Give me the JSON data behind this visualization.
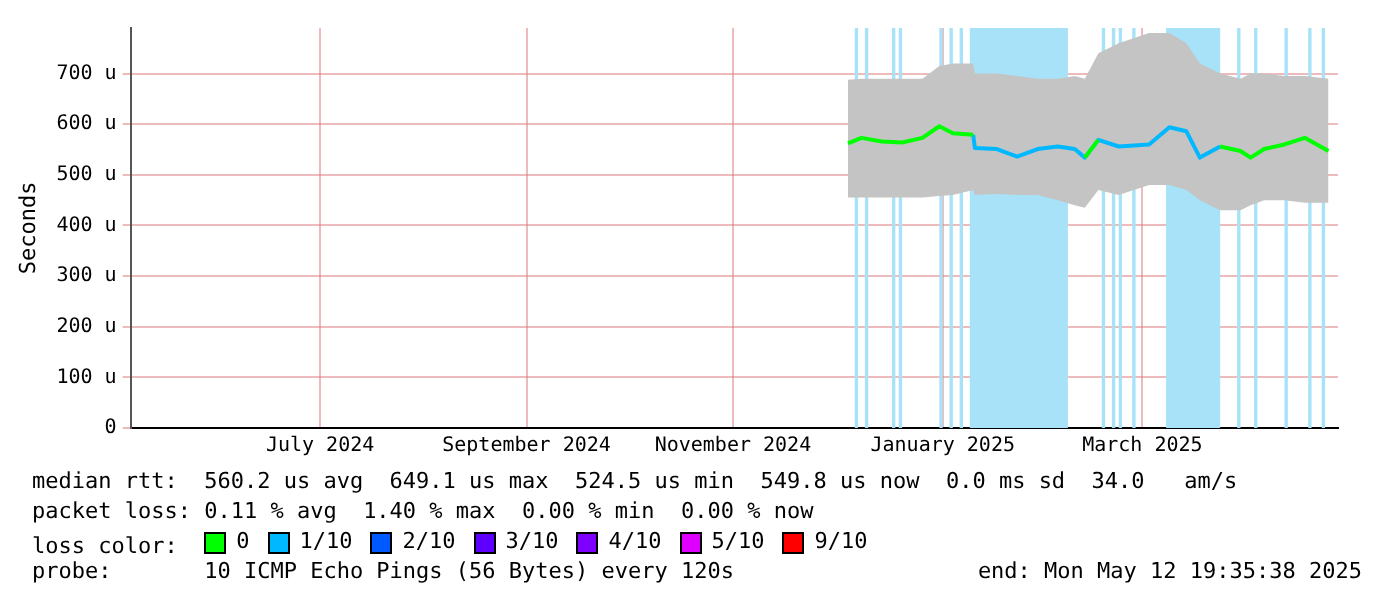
{
  "chart_data": {
    "type": "line",
    "ylabel": "Seconds",
    "legend_title": "loss color:",
    "legend": "bottom",
    "grid": true,
    "xlim": [
      "2024-05-21",
      "2025-05-12T19:35"
    ],
    "xticks": [
      {
        "value": "2024-07-16",
        "label": "July 2024"
      },
      {
        "value": "2024-09-15",
        "label": "September 2024"
      },
      {
        "value": "2024-11-15",
        "label": "November 2024"
      },
      {
        "value": "2025-01-16",
        "label": "January 2025"
      },
      {
        "value": "2025-03-16",
        "label": "March 2025"
      }
    ],
    "ylim": [
      0,
      790
    ],
    "yticks": [
      0,
      {
        "value": 100,
        "label": "100 u"
      },
      {
        "value": 200,
        "label": "200 u"
      },
      {
        "value": 300,
        "label": "300 u"
      },
      {
        "value": 400,
        "label": "400 u"
      },
      {
        "value": 500,
        "label": "500 u"
      },
      {
        "value": 600,
        "label": "600 u"
      },
      {
        "value": 700,
        "label": "700 u"
      }
    ],
    "x": [
      "2024-12-19",
      "2024-12-23",
      "2024-12-29",
      "2025-01-04",
      "2025-01-10",
      "2025-01-15",
      "2025-01-19",
      "2025-01-25",
      "2025-01-25T12:00",
      "2025-02-01",
      "2025-02-07",
      "2025-02-13",
      "2025-02-19",
      "2025-02-24",
      "2025-02-27",
      "2025-03-03",
      "2025-03-09",
      "2025-03-18",
      "2025-03-24",
      "2025-03-29",
      "2025-04-02",
      "2025-04-08",
      "2025-04-14",
      "2025-04-17",
      "2025-04-21",
      "2025-04-27",
      "2025-05-03",
      "2025-05-10"
    ],
    "series": [
      {
        "name": "0",
        "color": "#00ff00",
        "values": [
          562,
          573,
          566,
          564,
          573,
          596,
          582,
          579,
          null,
          null,
          null,
          null,
          null,
          null,
          534,
          569,
          null,
          null,
          null,
          null,
          null,
          556,
          547,
          534,
          551,
          560,
          573,
          547
        ],
        "lower": [
          455,
          455,
          455,
          455,
          455,
          458,
          460,
          470,
          460,
          462,
          460,
          460,
          450,
          440,
          435,
          470,
          460,
          480,
          480,
          470,
          450,
          430,
          430,
          440,
          450,
          450,
          445,
          445
        ],
        "upper": [
          688,
          690,
          690,
          690,
          690,
          715,
          720,
          720,
          700,
          700,
          695,
          690,
          690,
          695,
          690,
          740,
          760,
          780,
          780,
          760,
          720,
          700,
          690,
          700,
          700,
          695,
          695,
          690
        ]
      },
      {
        "name": "1/10",
        "color": "#00b8ff",
        "values": [
          null,
          null,
          null,
          null,
          null,
          null,
          null,
          579,
          553,
          551,
          536,
          551,
          556,
          551,
          534,
          569,
          556,
          560,
          594,
          586,
          534,
          556,
          null,
          null,
          null,
          null,
          null,
          null
        ]
      },
      {
        "name": "2/10",
        "color": "#0059ff",
        "values": [
          null,
          null,
          null,
          null,
          null,
          null,
          null,
          null,
          null,
          null,
          null,
          null,
          null,
          null,
          null,
          null,
          null,
          null,
          null,
          null,
          null,
          null,
          null,
          null,
          null,
          null,
          null,
          null
        ]
      },
      {
        "name": "3/10",
        "color": "#5e00ff",
        "values": [
          null,
          null,
          null,
          null,
          null,
          null,
          null,
          null,
          null,
          null,
          null,
          null,
          null,
          null,
          null,
          null,
          null,
          null,
          null,
          null,
          null,
          null,
          null,
          null,
          null,
          null,
          null,
          null
        ]
      },
      {
        "name": "4/10",
        "color": "#7e00ff",
        "values": [
          null,
          null,
          null,
          null,
          null,
          null,
          null,
          null,
          null,
          null,
          null,
          null,
          null,
          null,
          null,
          null,
          null,
          null,
          null,
          null,
          null,
          null,
          null,
          null,
          null,
          null,
          null,
          null
        ]
      },
      {
        "name": "5/10",
        "color": "#dd00ff",
        "values": [
          null,
          null,
          null,
          null,
          null,
          null,
          null,
          null,
          null,
          null,
          null,
          null,
          null,
          null,
          null,
          null,
          null,
          null,
          null,
          null,
          null,
          null,
          null,
          null,
          null,
          null,
          null,
          null
        ]
      },
      {
        "name": "9/10",
        "color": "#ff0000",
        "values": [
          null,
          null,
          null,
          null,
          null,
          null,
          null,
          null,
          null,
          null,
          null,
          null,
          null,
          null,
          null,
          null,
          null,
          null,
          null,
          null,
          null,
          null,
          null,
          null,
          null,
          null,
          null,
          null
        ]
      }
    ],
    "bands": [
      {
        "axis": "x",
        "from": "2024-12-21",
        "to": "2024-12-22",
        "color": "#a8e2f8"
      },
      {
        "axis": "x",
        "from": "2024-12-24",
        "to": "2024-12-25",
        "color": "#a8e2f8"
      },
      {
        "axis": "x",
        "from": "2025-01-01",
        "to": "2025-01-02",
        "color": "#a8e2f8"
      },
      {
        "axis": "x",
        "from": "2025-01-03",
        "to": "2025-01-04",
        "color": "#a8e2f8"
      },
      {
        "axis": "x",
        "from": "2025-01-15",
        "to": "2025-01-16",
        "color": "#a8e2f8"
      },
      {
        "axis": "x",
        "from": "2025-01-18",
        "to": "2025-01-19",
        "color": "#a8e2f8"
      },
      {
        "axis": "x",
        "from": "2025-01-21",
        "to": "2025-01-22",
        "color": "#a8e2f8"
      },
      {
        "axis": "x",
        "from": "2025-01-24",
        "to": "2025-02-22",
        "color": "#a8e2f8"
      },
      {
        "axis": "x",
        "from": "2025-03-04",
        "to": "2025-03-05",
        "color": "#a8e2f8"
      },
      {
        "axis": "x",
        "from": "2025-03-07",
        "to": "2025-03-08",
        "color": "#a8e2f8"
      },
      {
        "axis": "x",
        "from": "2025-03-09",
        "to": "2025-03-10",
        "color": "#a8e2f8"
      },
      {
        "axis": "x",
        "from": "2025-03-13",
        "to": "2025-03-14",
        "color": "#a8e2f8"
      },
      {
        "axis": "x",
        "from": "2025-03-23",
        "to": "2025-04-08",
        "color": "#a8e2f8"
      },
      {
        "axis": "x",
        "from": "2025-04-13",
        "to": "2025-04-14",
        "color": "#a8e2f8"
      },
      {
        "axis": "x",
        "from": "2025-04-18",
        "to": "2025-04-19",
        "color": "#a8e2f8"
      },
      {
        "axis": "x",
        "from": "2025-04-27",
        "to": "2025-04-28",
        "color": "#a8e2f8"
      },
      {
        "axis": "x",
        "from": "2025-05-04",
        "to": "2025-05-05",
        "color": "#a8e2f8"
      },
      {
        "axis": "x",
        "from": "2025-05-08",
        "to": "2025-05-09",
        "color": "#a8e2f8"
      }
    ],
    "annotations": [
      "median rtt:  560.2 us avg  649.1 us max  524.5 us min  549.8 us now  0.0 ms sd  34.0   am/s",
      "packet loss: 0.11 % avg  1.40 % max  0.00 % min  0.00 % now",
      "probe:       10 ICMP Echo Pings (56 Bytes) every 120s",
      "end: Mon May 12 19:35:38 2025"
    ]
  }
}
